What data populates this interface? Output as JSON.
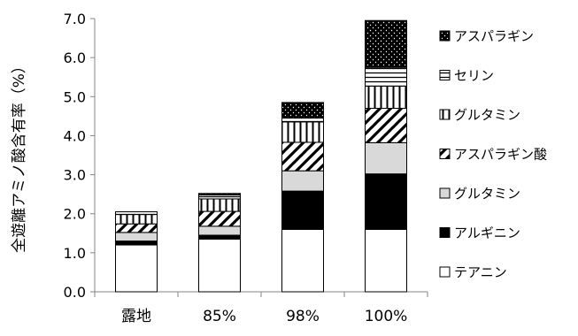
{
  "chart_data": {
    "type": "bar",
    "stacked": true,
    "title": "",
    "xlabel": "",
    "ylabel": "全遊離アミノ酸含有率（%）",
    "ylim": [
      0,
      7.0
    ],
    "yticks": [
      "0.0",
      "1.0",
      "2.0",
      "3.0",
      "4.0",
      "5.0",
      "6.0",
      "7.0"
    ],
    "grid": false,
    "legend_position": "right",
    "categories": [
      "露地",
      "85%",
      "98%",
      "100%"
    ],
    "series": [
      {
        "name": "テアニン",
        "values": [
          1.2,
          1.35,
          1.6,
          1.6
        ],
        "pattern": "white"
      },
      {
        "name": "アルギニン",
        "values": [
          0.1,
          0.1,
          0.98,
          1.42
        ],
        "pattern": "black"
      },
      {
        "name": "グルタミン",
        "values": [
          0.22,
          0.23,
          0.52,
          0.8
        ],
        "pattern": "lightgray"
      },
      {
        "name": "アスパラギン酸",
        "values": [
          0.22,
          0.38,
          0.73,
          0.88
        ],
        "pattern": "diagonal"
      },
      {
        "name": "グルタミン",
        "values": [
          0.24,
          0.32,
          0.52,
          0.57
        ],
        "pattern": "vertical"
      },
      {
        "name": "セリン",
        "values": [
          0.07,
          0.1,
          0.1,
          0.48
        ],
        "pattern": "horizontal"
      },
      {
        "name": "アスパラギン",
        "values": [
          0.0,
          0.04,
          0.4,
          1.2
        ],
        "pattern": "dots"
      }
    ],
    "legend_order_top_to_bottom": [
      "アスパラギン",
      "セリン",
      "グルタミン",
      "アスパラギン酸",
      "グルタミン",
      "アルギニン",
      "テアニン"
    ]
  }
}
